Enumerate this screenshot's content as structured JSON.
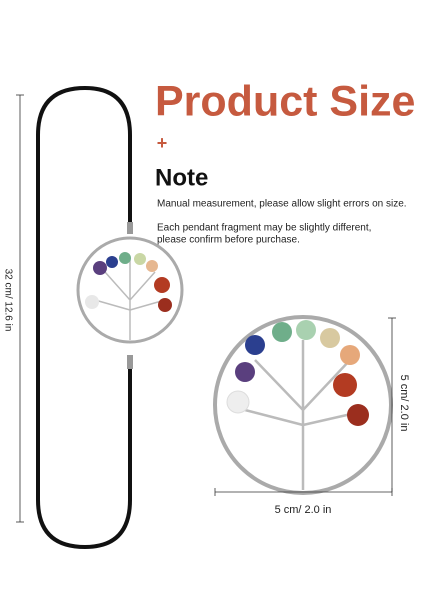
{
  "header": {
    "title": "Product Size",
    "plus": "+"
  },
  "note": {
    "title": "Note",
    "lines": [
      "Manual measurement, please allow slight errors on size.",
      "Each pendant fragment may be slightly different,",
      "please confirm before purchase."
    ]
  },
  "dimensions": {
    "length": "32 cm/ 12.6 in",
    "height": "5 cm/ 2.0 in",
    "width": "5 cm/ 2.0 in"
  }
}
